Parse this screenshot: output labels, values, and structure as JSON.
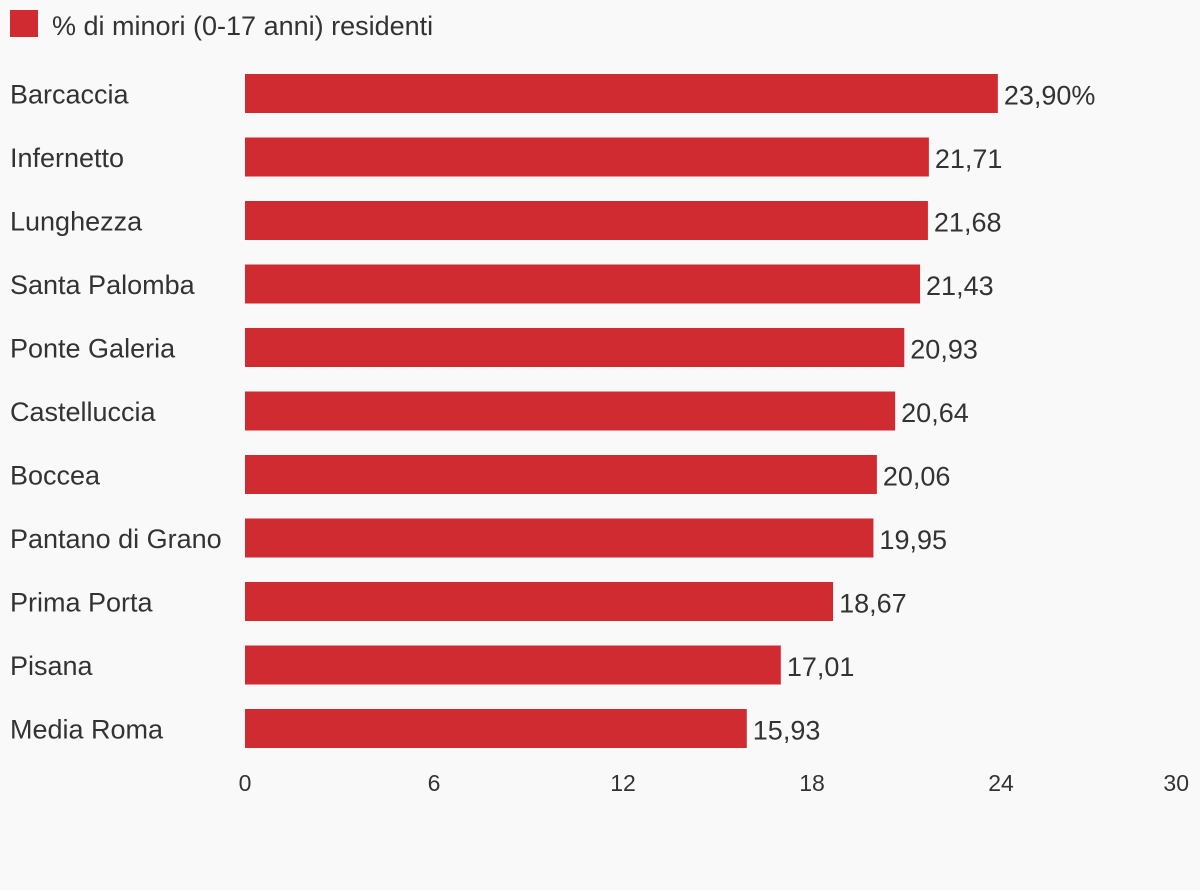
{
  "chart_data": {
    "type": "bar",
    "orientation": "horizontal",
    "legend": {
      "position": "top-left",
      "entries": [
        "% di minori (0-17 anni) residenti"
      ]
    },
    "series": [
      {
        "name": "% di minori (0-17 anni) residenti",
        "color": "#cf2b31",
        "values": [
          23.9,
          21.71,
          21.68,
          21.43,
          20.93,
          20.64,
          20.06,
          19.95,
          18.67,
          17.01,
          15.93
        ]
      }
    ],
    "categories": [
      "Barcaccia",
      "Infernetto",
      "Lunghezza",
      "Santa Palomba",
      "Ponte Galeria",
      "Castelluccia",
      "Boccea",
      "Pantano di Grano",
      "Prima Porta",
      "Pisana",
      "Media Roma"
    ],
    "value_labels": [
      "23,90%",
      "21,71",
      "21,68",
      "21,43",
      "20,93",
      "20,64",
      "20,06",
      "19,95",
      "18,67",
      "17,01",
      "15,93"
    ],
    "xlim": [
      0,
      30
    ],
    "x_ticks": [
      0,
      6,
      12,
      18,
      24,
      30
    ],
    "x_tick_labels": [
      "0",
      "6",
      "12",
      "18",
      "24",
      "30"
    ],
    "grid": false
  }
}
